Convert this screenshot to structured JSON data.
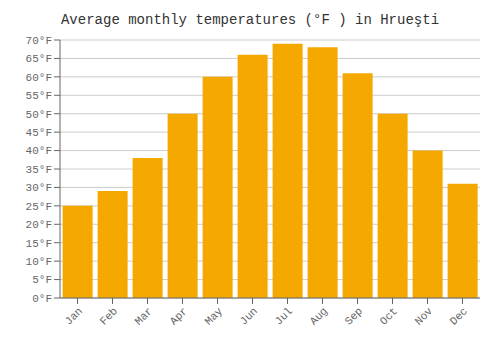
{
  "chart_data": {
    "type": "bar",
    "title": "Average monthly temperatures (°F ) in Hrueşti",
    "categories": [
      "Jan",
      "Feb",
      "Mar",
      "Apr",
      "May",
      "Jun",
      "Jul",
      "Aug",
      "Sep",
      "Oct",
      "Nov",
      "Dec"
    ],
    "values": [
      25,
      29,
      38,
      50,
      60,
      66,
      69,
      68,
      61,
      50,
      40,
      31
    ],
    "color": "#F5A800",
    "ylim": [
      0,
      70
    ],
    "yticks": [
      {
        "value": 0,
        "label": "0°F"
      },
      {
        "value": 5,
        "label": "5°F"
      },
      {
        "value": 10,
        "label": "10°F"
      },
      {
        "value": 15,
        "label": "15°F"
      },
      {
        "value": 20,
        "label": "20°F"
      },
      {
        "value": 25,
        "label": "25°F"
      },
      {
        "value": 30,
        "label": "30°F"
      },
      {
        "value": 35,
        "label": "35°F"
      },
      {
        "value": 40,
        "label": "40°F"
      },
      {
        "value": 45,
        "label": "45°F"
      },
      {
        "value": 50,
        "label": "50°F"
      },
      {
        "value": 55,
        "label": "55°F"
      },
      {
        "value": 60,
        "label": "60°F"
      },
      {
        "value": 65,
        "label": "65°F"
      },
      {
        "value": 70,
        "label": "70°F"
      }
    ],
    "grid": true
  }
}
